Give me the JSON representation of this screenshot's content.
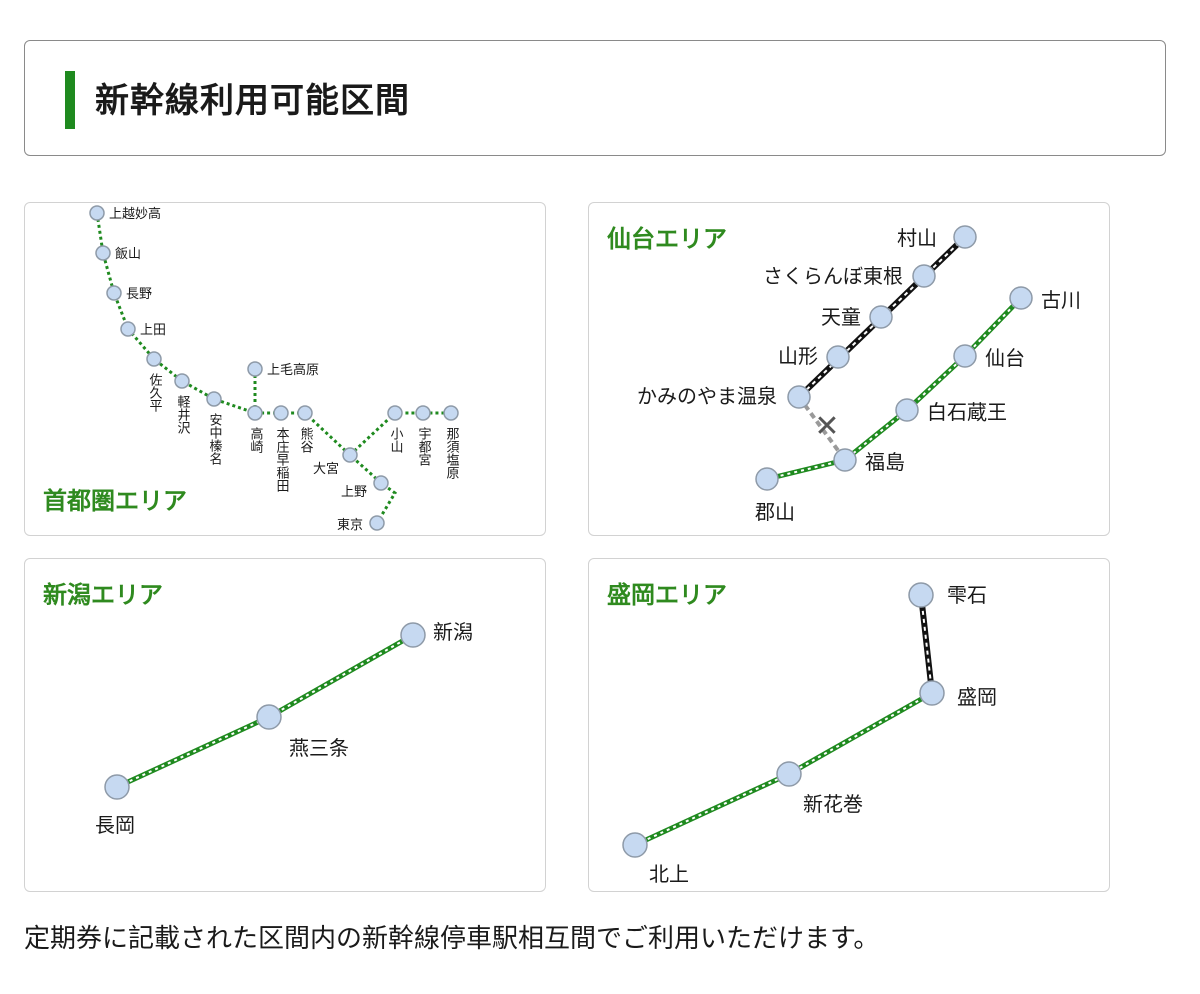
{
  "header": {
    "title": "新幹線利用可能区間"
  },
  "panels": {
    "shutoken": {
      "label": "首都圏エリア",
      "stations": [
        "上越妙高",
        "飯山",
        "長野",
        "上田",
        "佐久平",
        "軽井沢",
        "安中榛名",
        "高崎",
        "上毛高原",
        "本庄早稲田",
        "熊谷",
        "大宮",
        "上野",
        "東京",
        "小山",
        "宇都宮",
        "那須塩原"
      ]
    },
    "sendai": {
      "label": "仙台エリア",
      "stations": [
        "村山",
        "さくらんぼ東根",
        "天童",
        "山形",
        "かみのやま温泉",
        "古川",
        "仙台",
        "白石蔵王",
        "福島",
        "郡山"
      ],
      "blocked_mark": "✕"
    },
    "niigata": {
      "label": "新潟エリア",
      "stations": [
        "新潟",
        "燕三条",
        "長岡"
      ]
    },
    "morioka": {
      "label": "盛岡エリア",
      "stations": [
        "雫石",
        "盛岡",
        "新花巻",
        "北上"
      ]
    }
  },
  "footer": {
    "note": "定期券に記載された区間内の新幹線停車駅相互間でご利用いただけます。"
  },
  "colors": {
    "accent": "#1f8a1f",
    "usable_line": "#1f8a1f",
    "unusable_line": "#111111",
    "station_fill": "#c6d9f1"
  }
}
